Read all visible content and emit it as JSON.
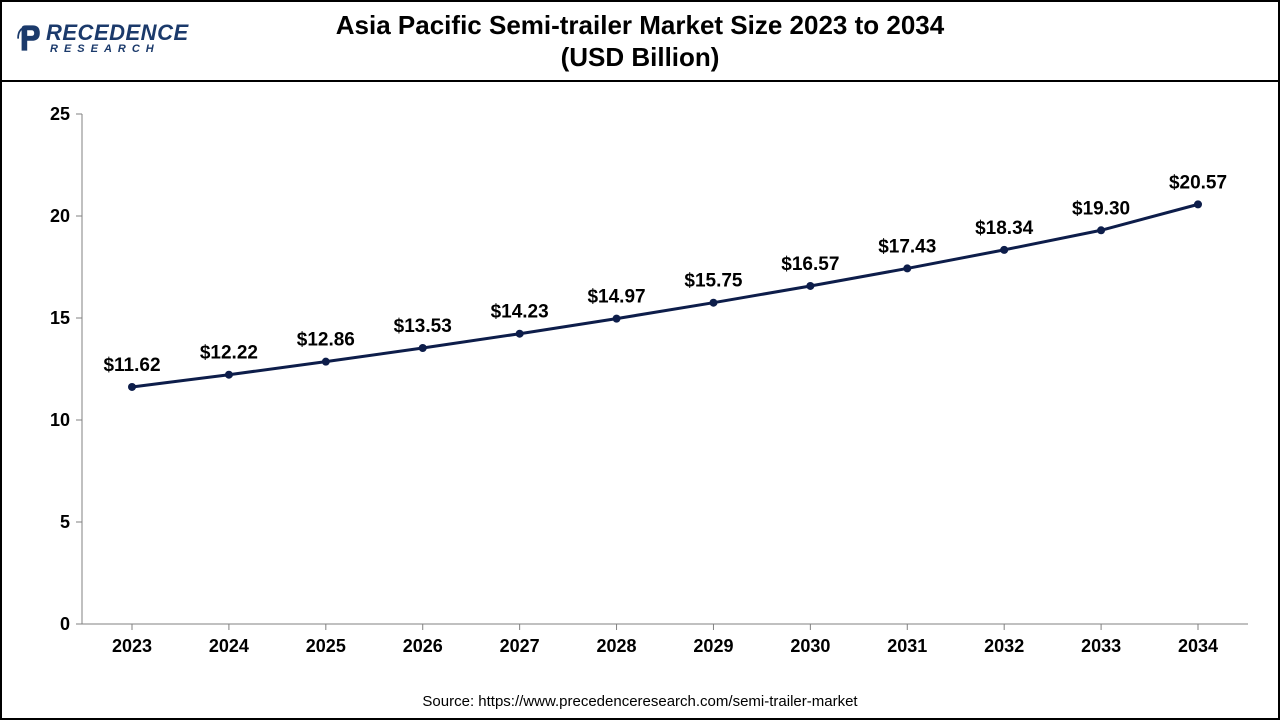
{
  "logo": {
    "main": "RECEDENCE",
    "sub": "RESEARCH",
    "color": "#1b3a6b"
  },
  "title": {
    "line1": "Asia Pacific Semi-trailer Market Size 2023 to 2034",
    "line2": "(USD Billion)"
  },
  "source_text": "Source: https://www.precedenceresearch.com/semi-trailer-market",
  "chart": {
    "type": "line",
    "background_color": "#ffffff",
    "border_color": "#000000",
    "line_color": "#0d1d4a",
    "marker_color": "#0d1d4a",
    "marker_radius": 4,
    "line_width": 3,
    "axis_color": "#808080",
    "grid_on": false,
    "ylim": [
      0,
      25
    ],
    "ytick_step": 5,
    "yticks": [
      0,
      5,
      10,
      15,
      20,
      25
    ],
    "categories": [
      "2023",
      "2024",
      "2025",
      "2026",
      "2027",
      "2028",
      "2029",
      "2030",
      "2031",
      "2032",
      "2033",
      "2034"
    ],
    "values": [
      11.62,
      12.22,
      12.86,
      13.53,
      14.23,
      14.97,
      15.75,
      16.57,
      17.43,
      18.34,
      19.3,
      20.57
    ],
    "value_labels": [
      "$11.62",
      "$12.22",
      "$12.86",
      "$13.53",
      "$14.23",
      "$14.97",
      "$15.75",
      "$16.57",
      "$17.43",
      "$18.34",
      "$19.30",
      "$20.57"
    ],
    "tick_fontsize": 18,
    "data_label_fontsize": 19,
    "title_fontsize": 26
  }
}
